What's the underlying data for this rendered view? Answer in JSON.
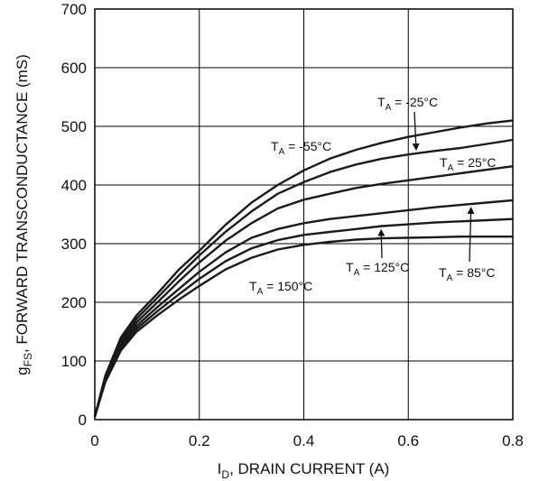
{
  "chart_data": {
    "type": "line",
    "xlabel_main": "I",
    "xlabel_sub": "D",
    "xlabel_rest": ", DRAIN CURRENT (A)",
    "ylabel_main": "g",
    "ylabel_sub": "FS",
    "ylabel_rest": ", FORWARD TRANSCONDUCTANCE (mS)",
    "xlim": [
      0,
      0.8
    ],
    "ylim": [
      0,
      700
    ],
    "x_ticks": [
      0,
      0.2,
      0.4,
      0.6,
      0.8
    ],
    "x_tick_labels": [
      "0",
      "0.2",
      "0.4",
      "0.6",
      "0.8"
    ],
    "y_ticks": [
      0,
      100,
      200,
      300,
      400,
      500,
      600,
      700
    ],
    "y_tick_labels": [
      "0",
      "100",
      "200",
      "300",
      "400",
      "500",
      "600",
      "700"
    ],
    "grid": true,
    "series": [
      {
        "name": "TA = -55°C",
        "x": [
          0,
          0.02,
          0.05,
          0.08,
          0.12,
          0.16,
          0.2,
          0.25,
          0.3,
          0.35,
          0.4,
          0.45,
          0.5,
          0.55,
          0.6,
          0.65,
          0.7,
          0.75,
          0.8
        ],
        "values": [
          5,
          75,
          140,
          178,
          215,
          255,
          288,
          332,
          370,
          400,
          425,
          445,
          460,
          472,
          482,
          490,
          498,
          505,
          510
        ]
      },
      {
        "name": "TA = -25°C",
        "x": [
          0,
          0.02,
          0.05,
          0.08,
          0.12,
          0.16,
          0.2,
          0.25,
          0.3,
          0.35,
          0.4,
          0.45,
          0.5,
          0.55,
          0.6,
          0.65,
          0.7,
          0.75,
          0.8
        ],
        "values": [
          5,
          72,
          135,
          172,
          208,
          245,
          280,
          320,
          355,
          385,
          405,
          422,
          435,
          445,
          452,
          458,
          463,
          470,
          477
        ]
      },
      {
        "name": "TA = 25°C",
        "x": [
          0,
          0.02,
          0.05,
          0.08,
          0.12,
          0.16,
          0.2,
          0.25,
          0.3,
          0.35,
          0.4,
          0.45,
          0.5,
          0.55,
          0.6,
          0.65,
          0.7,
          0.75,
          0.8
        ],
        "values": [
          5,
          70,
          130,
          166,
          200,
          235,
          268,
          305,
          335,
          360,
          375,
          385,
          395,
          402,
          408,
          414,
          420,
          426,
          432
        ]
      },
      {
        "name": "TA = 85°C",
        "x": [
          0,
          0.02,
          0.05,
          0.08,
          0.12,
          0.16,
          0.2,
          0.25,
          0.3,
          0.35,
          0.4,
          0.45,
          0.5,
          0.55,
          0.6,
          0.65,
          0.7,
          0.75,
          0.8
        ],
        "values": [
          5,
          68,
          126,
          160,
          192,
          222,
          252,
          285,
          310,
          325,
          335,
          342,
          347,
          352,
          357,
          362,
          366,
          370,
          374
        ]
      },
      {
        "name": "TA = 125°C",
        "x": [
          0,
          0.02,
          0.05,
          0.08,
          0.12,
          0.16,
          0.2,
          0.25,
          0.3,
          0.35,
          0.4,
          0.45,
          0.5,
          0.55,
          0.6,
          0.65,
          0.7,
          0.75,
          0.8
        ],
        "values": [
          5,
          66,
          122,
          155,
          185,
          213,
          240,
          270,
          292,
          306,
          315,
          320,
          325,
          330,
          333,
          336,
          338,
          340,
          342
        ]
      },
      {
        "name": "TA = 150°C",
        "x": [
          0,
          0.02,
          0.05,
          0.08,
          0.12,
          0.16,
          0.2,
          0.25,
          0.3,
          0.35,
          0.4,
          0.45,
          0.5,
          0.55,
          0.6,
          0.65,
          0.7,
          0.75,
          0.8
        ],
        "values": [
          5,
          64,
          118,
          150,
          178,
          204,
          228,
          256,
          276,
          290,
          298,
          303,
          307,
          309,
          310,
          311,
          312,
          312,
          312
        ]
      }
    ],
    "annotations": [
      {
        "main": "T",
        "sub": "A",
        "rest": " = -55°C",
        "target_series": 0,
        "target_x": 0.39
      },
      {
        "main": "T",
        "sub": "A",
        "rest": " = -25°C",
        "target_series": 1,
        "target_x": 0.615
      },
      {
        "main": "T",
        "sub": "A",
        "rest": " = 25°C",
        "target_series": 2,
        "target_x": 0.68
      },
      {
        "main": "T",
        "sub": "A",
        "rest": " = 125°C",
        "target_series": 4,
        "target_x": 0.548
      },
      {
        "main": "T",
        "sub": "A",
        "rest": " = 85°C",
        "target_series": 3,
        "target_x": 0.72
      },
      {
        "main": "T",
        "sub": "A",
        "rest": " = 150°C",
        "target_series": 5,
        "target_x": 0.3
      }
    ]
  }
}
